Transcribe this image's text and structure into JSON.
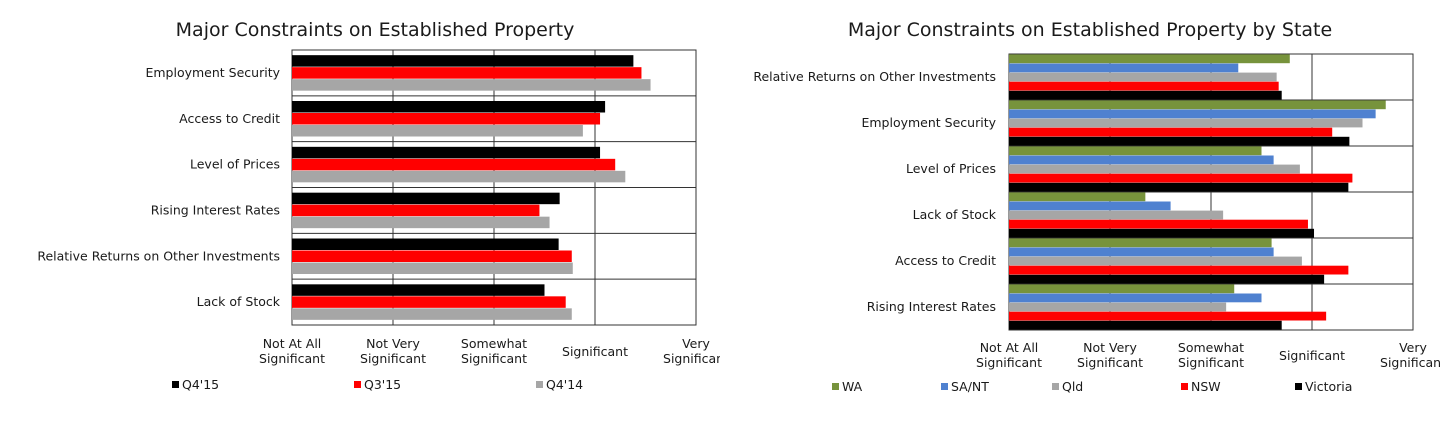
{
  "chart_data": [
    {
      "type": "bar",
      "orientation": "horizontal",
      "title": "Major Constraints on Established Property",
      "categories": [
        "Employment Security",
        "Access to Credit",
        "Level of Prices",
        "Rising Interest Rates",
        "Relative Returns on Other Investments",
        "Lack of Stock"
      ],
      "x_ticks": [
        "Not At All Significant",
        "Not Very Significant",
        "Somewhat Significant",
        "Significant",
        "Very Significant"
      ],
      "xlim": [
        1,
        5
      ],
      "grid": true,
      "legend_position": "bottom",
      "series": [
        {
          "name": "Q4'15",
          "color": "#000000",
          "values": [
            4.38,
            4.1,
            4.05,
            3.65,
            3.64,
            3.5
          ]
        },
        {
          "name": "Q3'15",
          "color": "#ff0000",
          "values": [
            4.46,
            4.05,
            4.2,
            3.45,
            3.77,
            3.71
          ]
        },
        {
          "name": "Q4'14",
          "color": "#a6a6a6",
          "values": [
            4.55,
            3.88,
            4.3,
            3.55,
            3.78,
            3.77
          ]
        }
      ]
    },
    {
      "type": "bar",
      "orientation": "horizontal",
      "title": "Major Constraints on Established Property by State",
      "categories": [
        "Relative Returns on Other Investments",
        "Employment Security",
        "Level of Prices",
        "Lack of Stock",
        "Access to Credit",
        "Rising Interest Rates"
      ],
      "x_ticks": [
        "Not At All Significant",
        "Not Very Significant",
        "Somewhat Significant",
        "Significant",
        "Very Significant"
      ],
      "xlim": [
        1,
        5
      ],
      "grid": true,
      "legend_position": "bottom",
      "series": [
        {
          "name": "WA",
          "color": "#77933c",
          "values": [
            3.78,
            4.73,
            3.5,
            2.35,
            3.6,
            3.23
          ]
        },
        {
          "name": "SA/NT",
          "color": "#4f81d0",
          "values": [
            3.27,
            4.63,
            3.62,
            2.6,
            3.62,
            3.5
          ]
        },
        {
          "name": "Qld",
          "color": "#a6a6a6",
          "values": [
            3.65,
            4.5,
            3.88,
            3.12,
            3.9,
            3.15
          ]
        },
        {
          "name": "NSW",
          "color": "#ff0000",
          "values": [
            3.67,
            4.2,
            4.4,
            3.96,
            4.36,
            4.14
          ]
        },
        {
          "name": "Victoria",
          "color": "#000000",
          "values": [
            3.7,
            4.37,
            4.36,
            4.02,
            4.12,
            3.7
          ]
        }
      ]
    }
  ]
}
